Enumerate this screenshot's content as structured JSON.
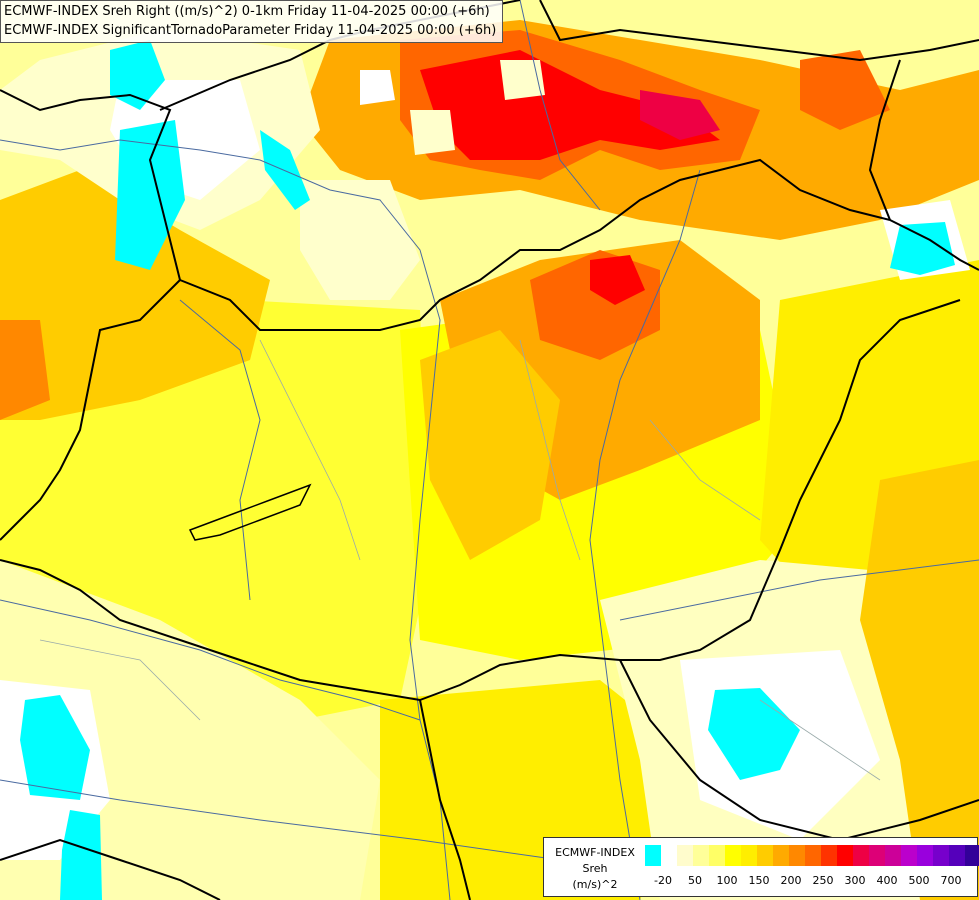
{
  "titles": {
    "line1": "ECMWF-INDEX Sreh Right ((m/s)^2) 0-1km Friday 11-04-2025 00:00 (+6h)",
    "line2": "ECMWF-INDEX SignificantTornadoParameter Friday 11-04-2025 00:00 (+6h)"
  },
  "legend": {
    "name_line1": "ECMWF-INDEX",
    "name_line2": "Sreh",
    "unit": "(m/s)^2",
    "colors": [
      "#00ffff",
      "#ffffff",
      "#fffccc",
      "#ffff99",
      "#ffff66",
      "#ffff00",
      "#ffee00",
      "#ffcc00",
      "#ffaa00",
      "#ff8800",
      "#ff6600",
      "#ff3300",
      "#ff0000",
      "#ee0044",
      "#dd0077",
      "#cc0099",
      "#bb00cc",
      "#9900dd",
      "#7700cc",
      "#5500bb",
      "#330099",
      "#000077"
    ],
    "ticks": [
      "-20",
      "50",
      "100",
      "150",
      "200",
      "250",
      "300",
      "400",
      "500",
      "700"
    ]
  },
  "colors": {
    "background": "#ffff99",
    "border": "#000000",
    "river": "#4a6aa0",
    "low": "#00ffff"
  }
}
